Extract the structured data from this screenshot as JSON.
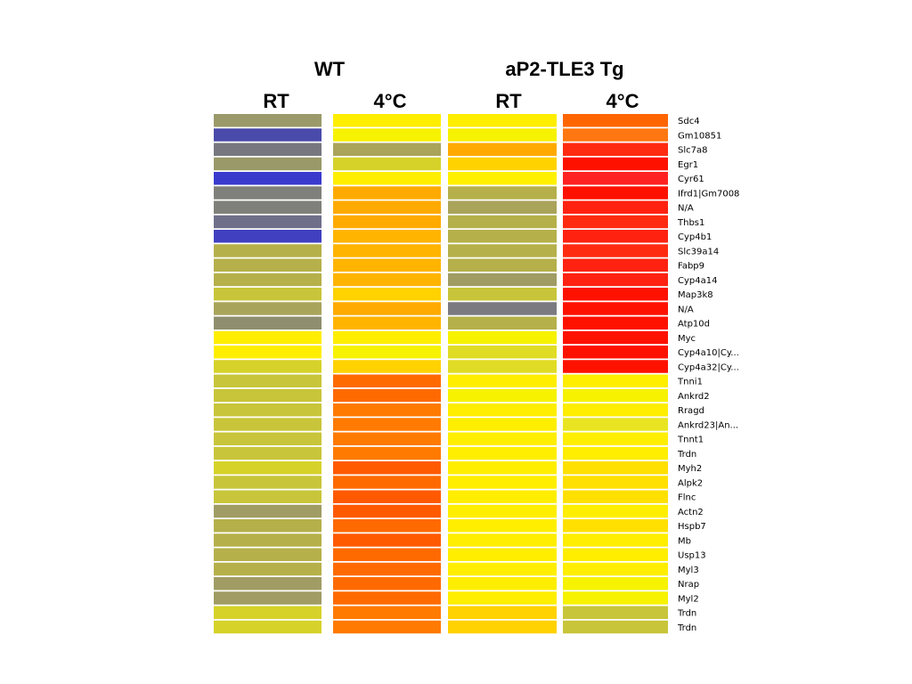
{
  "chart_data": {
    "type": "heatmap",
    "groups": [
      {
        "label": "WT",
        "columns": [
          "RT",
          "4°C"
        ]
      },
      {
        "label": "aP2-TLE3 Tg",
        "columns": [
          "RT",
          "4°C"
        ]
      }
    ],
    "genes": [
      "Sdc4",
      "Gm10851",
      "Slc7a8",
      "Egr1",
      "Cyr61",
      "Ifrd1|Gm7008",
      "N/A",
      "Thbs1",
      "Cyp4b1",
      "Slc39a14",
      "Fabp9",
      "Cyp4a14",
      "Map3k8",
      "N/A",
      "Atp10d",
      "Myc",
      "Cyp4a10|Cy...",
      "Cyp4a32|Cy...",
      "Tnni1",
      "Ankrd2",
      "Rragd",
      "Ankrd23|An...",
      "Tnnt1",
      "Trdn",
      "Myh2",
      "Alpk2",
      "Flnc",
      "Actn2",
      "Hspb7",
      "Mb",
      "Usp13",
      "Myl3",
      "Nrap",
      "Myl2",
      "Trdn",
      "Trdn"
    ],
    "cell_colors": [
      [
        "#9a9a6a",
        "#ffee00",
        "#ffee00",
        "#ff6600"
      ],
      [
        "#4a4aaa",
        "#f6f200",
        "#f6f200",
        "#ff7711"
      ],
      [
        "#77777f",
        "#aaa35a",
        "#ffaa00",
        "#ff2b11"
      ],
      [
        "#999969",
        "#d6d22a",
        "#ffd200",
        "#ff1100"
      ],
      [
        "#3a3acd",
        "#ffee00",
        "#fff000",
        "#ff2222"
      ],
      [
        "#80807a",
        "#ffaa00",
        "#b5b04a",
        "#ff1100"
      ],
      [
        "#80807a",
        "#ffaa00",
        "#aaa35a",
        "#ff2211"
      ],
      [
        "#6f6f8a",
        "#ffaa00",
        "#b5b04a",
        "#ff2b11"
      ],
      [
        "#4040c0",
        "#ffb400",
        "#b5b04a",
        "#ff2211"
      ],
      [
        "#b5b04a",
        "#ffb400",
        "#b5b04a",
        "#ff2b11"
      ],
      [
        "#b5b04a",
        "#ffb400",
        "#b5b04a",
        "#ff2211"
      ],
      [
        "#b5b04a",
        "#ffb400",
        "#a09c63",
        "#ff2211"
      ],
      [
        "#c8c53a",
        "#ffd200",
        "#c8c53a",
        "#ff1100"
      ],
      [
        "#a8a45a",
        "#ffaa00",
        "#7a7a80",
        "#ff1100"
      ],
      [
        "#8f8f6f",
        "#ffb400",
        "#b5b04a",
        "#ff1100"
      ],
      [
        "#ffee00",
        "#ffee00",
        "#f6f200",
        "#ff1100"
      ],
      [
        "#ffee00",
        "#f6f200",
        "#e0dc25",
        "#ff1100"
      ],
      [
        "#d6d22a",
        "#ffd200",
        "#e0dc25",
        "#ff1100"
      ],
      [
        "#c8c53a",
        "#ff6a00",
        "#ffee00",
        "#ffee00"
      ],
      [
        "#c8c53a",
        "#ff6a00",
        "#f6f200",
        "#f6f200"
      ],
      [
        "#c8c53a",
        "#ff7a00",
        "#ffee00",
        "#ffee00"
      ],
      [
        "#c8c53a",
        "#ff7a00",
        "#ffee00",
        "#e8e422"
      ],
      [
        "#c8c53a",
        "#ff7a00",
        "#ffee00",
        "#ffee00"
      ],
      [
        "#c8c53a",
        "#ff7a00",
        "#ffee00",
        "#ffee00"
      ],
      [
        "#d6d22a",
        "#ff5a00",
        "#ffee00",
        "#ffe000"
      ],
      [
        "#c8c53a",
        "#ff6a00",
        "#ffee00",
        "#ffe000"
      ],
      [
        "#c8c53a",
        "#ff5a00",
        "#ffee00",
        "#ffe000"
      ],
      [
        "#a09c63",
        "#ff5a00",
        "#ffee00",
        "#ffee00"
      ],
      [
        "#b5b04a",
        "#ff6a00",
        "#ffee00",
        "#ffe000"
      ],
      [
        "#b5b04a",
        "#ff5a00",
        "#ffee00",
        "#ffee00"
      ],
      [
        "#b5b04a",
        "#ff6a00",
        "#ffee00",
        "#ffee00"
      ],
      [
        "#b5b04a",
        "#ff6a00",
        "#ffee00",
        "#ffee00"
      ],
      [
        "#a09c63",
        "#ff6a00",
        "#ffee00",
        "#f6f200"
      ],
      [
        "#a09c63",
        "#ff6a00",
        "#ffee00",
        "#f6f200"
      ],
      [
        "#d6d22a",
        "#ff7a00",
        "#ffd200",
        "#c8c53a"
      ],
      [
        "#d6d22a",
        "#ff7a00",
        "#ffd200",
        "#c8c53a"
      ]
    ],
    "legend": "none",
    "grid": false
  }
}
